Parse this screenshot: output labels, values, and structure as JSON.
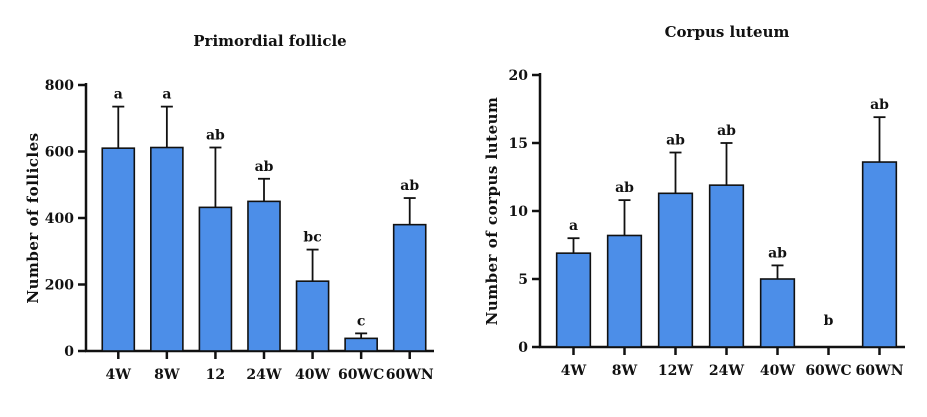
{
  "chart_data": [
    {
      "type": "bar",
      "title": "Primordial follicle",
      "xlabel": "",
      "ylabel": "Number of follicles",
      "ylim": [
        0,
        800
      ],
      "yticks": [
        0,
        200,
        400,
        600,
        800
      ],
      "categories": [
        "4W",
        "8W",
        "12",
        "24W",
        "40W",
        "60WC",
        "60WN"
      ],
      "values": [
        610,
        612,
        432,
        450,
        210,
        38,
        380
      ],
      "errors": [
        125,
        123,
        180,
        68,
        95,
        15,
        80
      ],
      "significance": [
        "a",
        "a",
        "ab",
        "ab",
        "bc",
        "c",
        "ab"
      ],
      "bar_color": "#4c8ee8"
    },
    {
      "type": "bar",
      "title": "Corpus luteum",
      "xlabel": "",
      "ylabel": "Number of corpus luteum",
      "ylim": [
        0,
        20
      ],
      "yticks": [
        0,
        5,
        10,
        15,
        20
      ],
      "categories": [
        "4W",
        "8W",
        "12W",
        "24W",
        "40W",
        "60WC",
        "60WN"
      ],
      "values": [
        6.9,
        8.2,
        11.3,
        11.9,
        5.0,
        0,
        13.6
      ],
      "errors": [
        1.1,
        2.6,
        3.0,
        3.1,
        1.0,
        0,
        3.3
      ],
      "significance": [
        "a",
        "ab",
        "ab",
        "ab",
        "ab",
        "b",
        "ab"
      ],
      "bar_color": "#4c8ee8"
    }
  ]
}
